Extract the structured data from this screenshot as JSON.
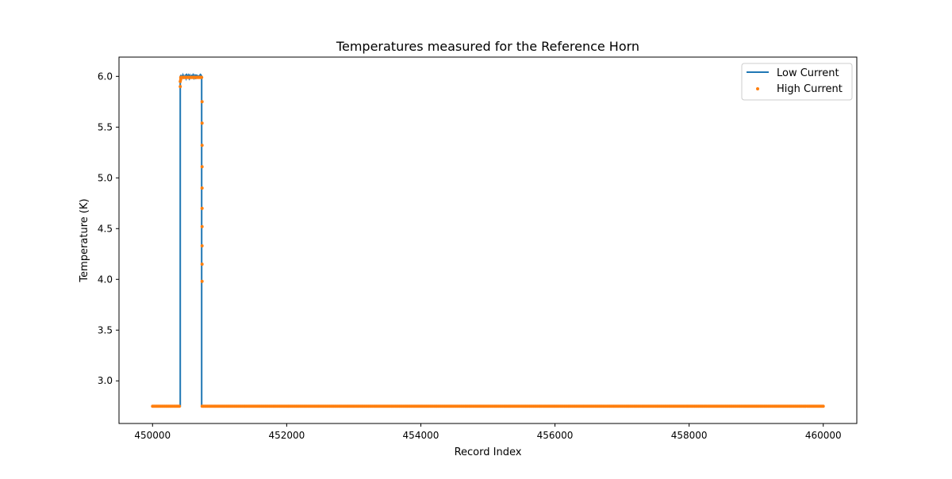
{
  "chart_data": {
    "type": "line",
    "title": "Temperatures measured for the Reference Horn",
    "xlabel": "Record Index",
    "ylabel": "Temperature (K)",
    "xlim": [
      449500,
      460500
    ],
    "ylim": [
      2.58,
      6.19
    ],
    "xticks": [
      450000,
      452000,
      454000,
      456000,
      458000,
      460000
    ],
    "yticks": [
      3.0,
      3.5,
      4.0,
      4.5,
      5.0,
      5.5,
      6.0
    ],
    "ytick_labels": [
      "3.0",
      "3.5",
      "4.0",
      "4.5",
      "5.0",
      "5.5",
      "6.0"
    ],
    "legend": {
      "placement": "top-right",
      "entries": [
        "Low Current",
        "High Current"
      ]
    },
    "series": [
      {
        "name": "Low Current",
        "kind": "line",
        "color": "#1f77b4",
        "points": [
          [
            450000,
            2.75
          ],
          [
            450413,
            2.75
          ],
          [
            450413,
            6.0
          ],
          [
            450732,
            6.0
          ],
          [
            450732,
            2.75
          ],
          [
            460000,
            2.75
          ]
        ],
        "plateau_noise": 0.02
      },
      {
        "name": "High Current",
        "kind": "scatter",
        "color": "#ff7f0e",
        "baseline": {
          "value": 2.75,
          "ranges": [
            [
              450000,
              450413
            ],
            [
              450740,
              460000
            ]
          ],
          "step": 20
        },
        "plateau": {
          "value": 5.99,
          "range": [
            450420,
            450732
          ],
          "step": 8
        },
        "points": [
          [
            450413,
            5.9
          ],
          [
            450413,
            5.95
          ],
          [
            450420,
            5.97
          ],
          [
            450738,
            5.75
          ],
          [
            450738,
            5.54
          ],
          [
            450738,
            5.32
          ],
          [
            450738,
            5.11
          ],
          [
            450738,
            4.9
          ],
          [
            450738,
            4.7
          ],
          [
            450738,
            4.52
          ],
          [
            450738,
            4.33
          ],
          [
            450738,
            4.15
          ],
          [
            450738,
            3.98
          ]
        ]
      }
    ]
  }
}
